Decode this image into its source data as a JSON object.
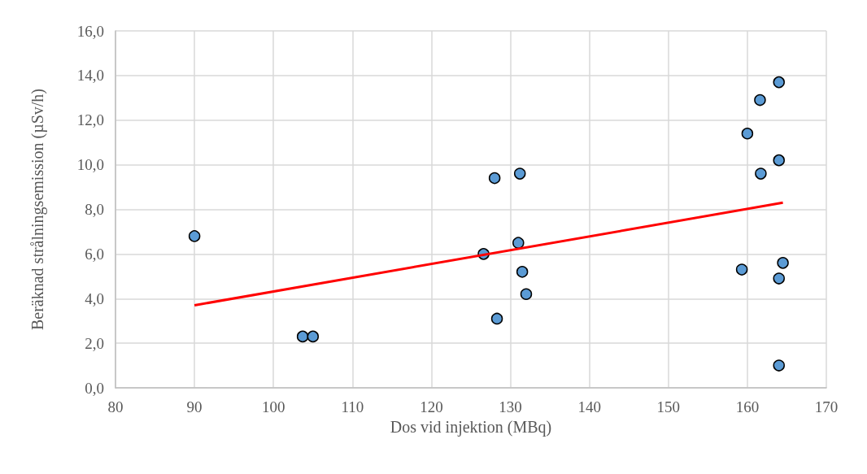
{
  "chart_data": {
    "type": "scatter",
    "xlabel": "Dos vid injektion (MBq)",
    "ylabel": "Beräknad strålningsemission (µSv/h)",
    "series": [
      {
        "color": "#5b9bd5",
        "marker": "circle",
        "x": [
          90,
          103.7,
          105.0,
          126.6,
          128.0,
          128.3,
          131.2,
          131.0,
          131.5,
          132.0,
          164.0,
          161.6,
          160.0,
          164.0,
          161.7,
          164.5,
          159.3,
          164.0,
          164.0
        ],
        "values": [
          6.8,
          2.3,
          2.3,
          6.0,
          9.4,
          3.1,
          9.6,
          6.5,
          5.2,
          4.2,
          13.7,
          12.9,
          11.4,
          10.2,
          9.6,
          5.6,
          5.3,
          4.9,
          1.0
        ]
      },
      {
        "type": "line",
        "color": "#ff0000",
        "marker": "none",
        "x": [
          90,
          164.5
        ],
        "values": [
          3.7,
          8.3
        ]
      }
    ],
    "xlim": [
      80,
      170
    ],
    "xticks": [
      80,
      90,
      100,
      110,
      120,
      130,
      140,
      150,
      160,
      170
    ],
    "ylim": [
      0,
      16
    ],
    "yticks": [
      {
        "value": 0,
        "label": "0,0"
      },
      {
        "value": 2,
        "label": "2,0"
      },
      {
        "value": 4,
        "label": "4,0"
      },
      {
        "value": 6,
        "label": "6,0"
      },
      {
        "value": 8,
        "label": "8,0"
      },
      {
        "value": 10,
        "label": "10,0"
      },
      {
        "value": 12,
        "label": "12,0"
      },
      {
        "value": 14,
        "label": "14,0"
      },
      {
        "value": 16,
        "label": "16,0"
      }
    ],
    "grid": true
  }
}
